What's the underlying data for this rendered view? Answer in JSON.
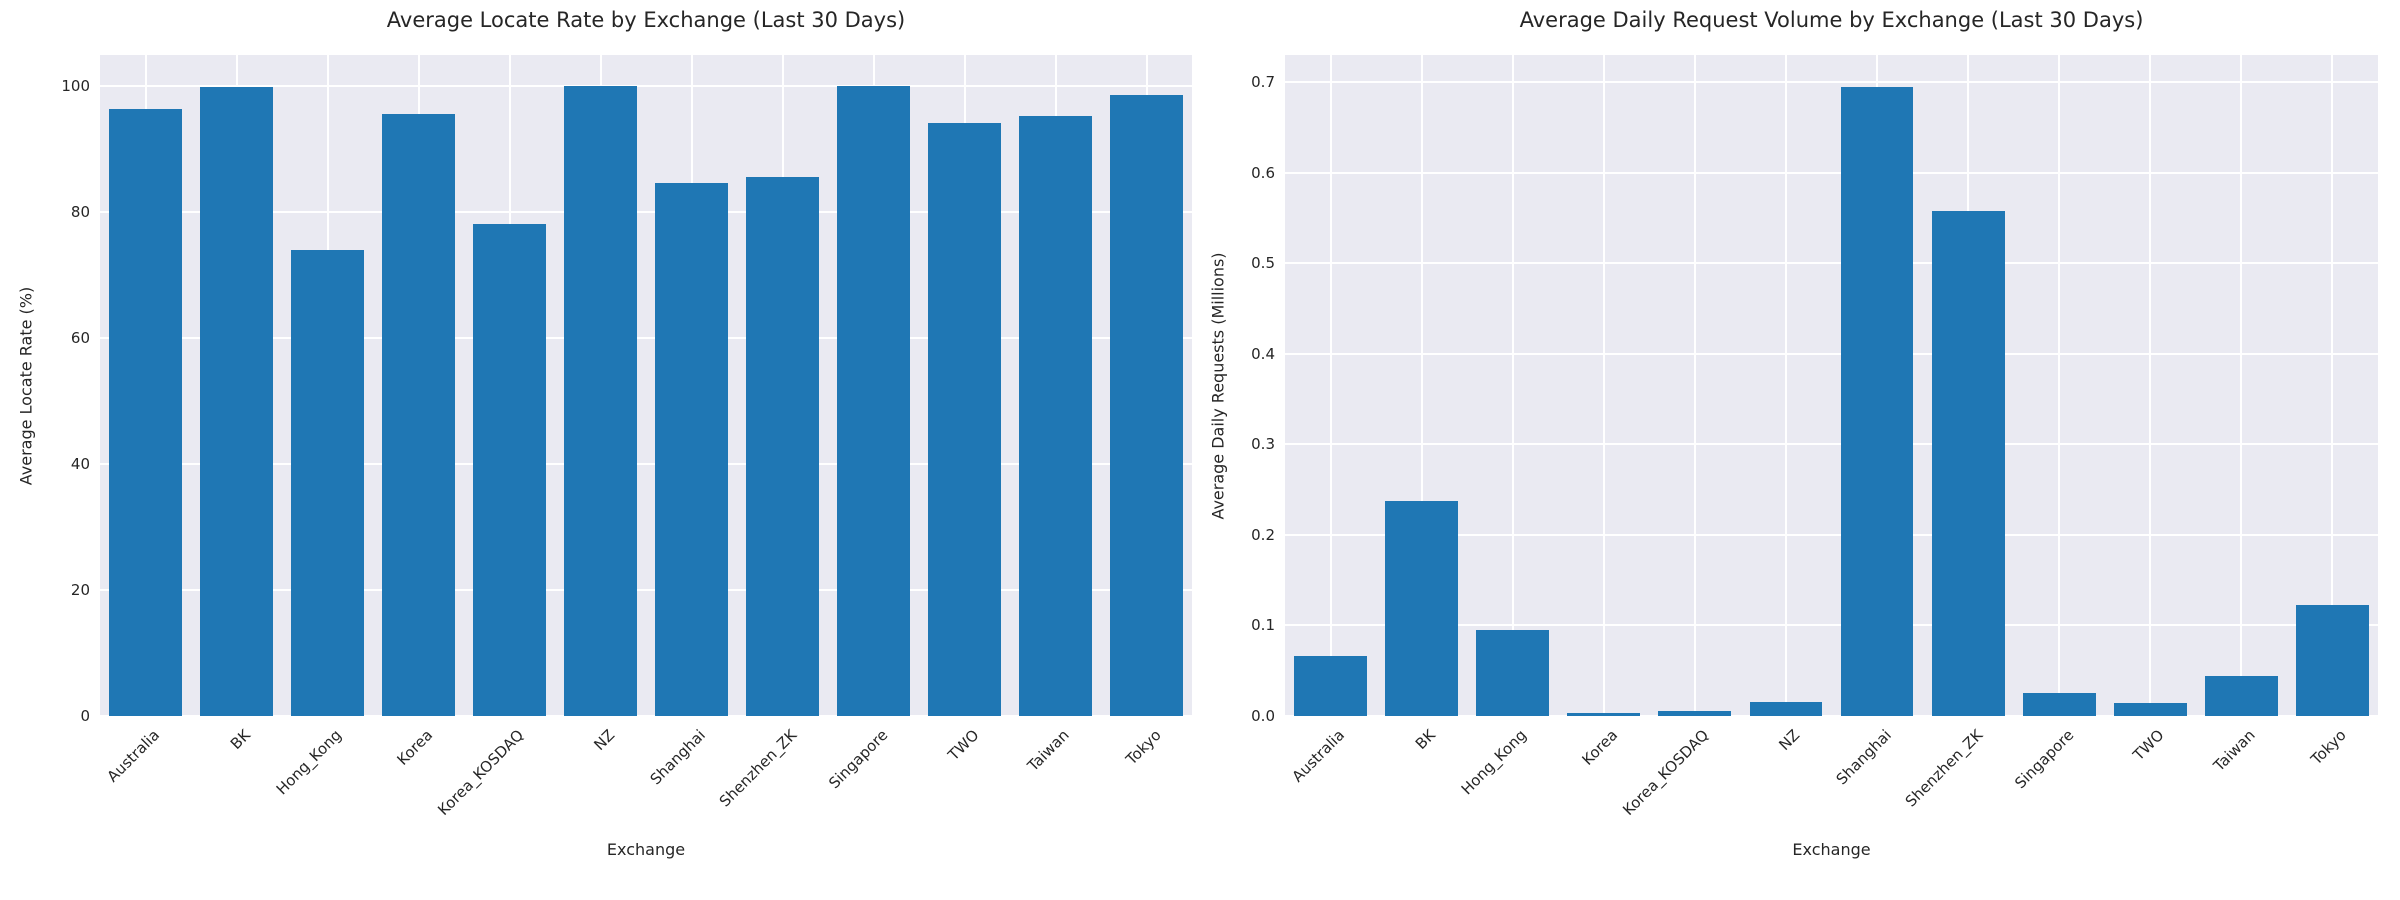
{
  "figure": {
    "background": "#ffffff",
    "plot_background": "#eaeaf2",
    "grid_color": "#ffffff",
    "text_color": "#262626",
    "bar_color": "#1f77b4"
  },
  "chart_data": [
    {
      "type": "bar",
      "title": "Average Locate Rate by Exchange (Last 30 Days)",
      "xlabel": "Exchange",
      "ylabel": "Average Locate Rate (%)",
      "legend": "none",
      "grid": "on",
      "categories": [
        "Australia",
        "BK",
        "Hong_Kong",
        "Korea",
        "Korea_KOSDAQ",
        "NZ",
        "Shanghai",
        "Shenzhen_ZK",
        "Singapore",
        "TWO",
        "Taiwan",
        "Tokyo"
      ],
      "values": [
        96.5,
        99.9,
        74.0,
        95.6,
        78.2,
        100.0,
        84.7,
        85.6,
        100.0,
        94.2,
        95.3,
        98.6
      ],
      "ylim": [
        0,
        105
      ],
      "yticks": [
        0,
        20,
        40,
        60,
        80,
        100
      ],
      "ytick_labels": [
        "0",
        "20",
        "40",
        "60",
        "80",
        "100"
      ],
      "xtick_rotation_deg": 45
    },
    {
      "type": "bar",
      "title": "Average Daily Request Volume by Exchange (Last 30 Days)",
      "xlabel": "Exchange",
      "ylabel": "Average Daily Requests (Millions)",
      "legend": "none",
      "grid": "on",
      "categories": [
        "Australia",
        "BK",
        "Hong_Kong",
        "Korea",
        "Korea_KOSDAQ",
        "NZ",
        "Shanghai",
        "Shenzhen_ZK",
        "Singapore",
        "TWO",
        "Taiwan",
        "Tokyo"
      ],
      "values": [
        0.066,
        0.238,
        0.095,
        0.003,
        0.005,
        0.016,
        0.695,
        0.558,
        0.025,
        0.014,
        0.044,
        0.123
      ],
      "ylim": [
        0,
        0.73
      ],
      "yticks": [
        0.0,
        0.1,
        0.2,
        0.3,
        0.4,
        0.5,
        0.6,
        0.7
      ],
      "ytick_labels": [
        "0.0",
        "0.1",
        "0.2",
        "0.3",
        "0.4",
        "0.5",
        "0.6",
        "0.7"
      ],
      "xtick_rotation_deg": 45
    }
  ]
}
